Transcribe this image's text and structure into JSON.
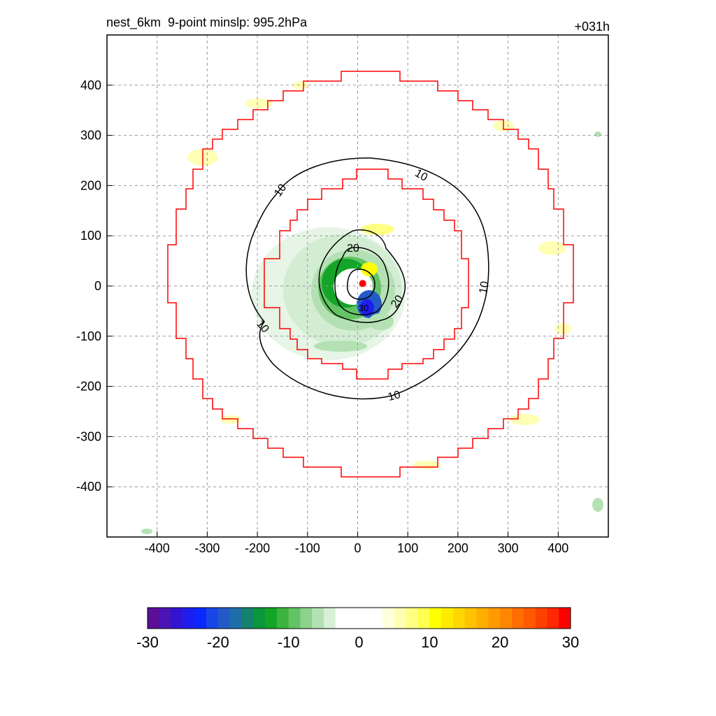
{
  "chart_data": {
    "type": "contour",
    "title_left": "nest_6km  9-point minslp: 995.2hPa",
    "title_right": "+031h",
    "xlim": [
      -500,
      500
    ],
    "ylim": [
      -500,
      500
    ],
    "x_ticks": [
      -400,
      -300,
      -200,
      -100,
      0,
      100,
      200,
      300,
      400
    ],
    "y_ticks": [
      400,
      300,
      200,
      100,
      0,
      -100,
      -200,
      -300,
      -400
    ],
    "x_tick_labels": [
      "-400",
      "-300",
      "-200",
      "-100",
      "0",
      "100",
      "200",
      "300",
      "400"
    ],
    "y_tick_labels": [
      "400",
      "300",
      "200",
      "100",
      "0",
      "-100",
      "-200",
      "-300",
      "-400"
    ],
    "grid": true,
    "contour_labels": [
      "10",
      "10",
      "10",
      "10",
      "10",
      "20",
      "20",
      "30"
    ],
    "storm_center": [
      10,
      5
    ],
    "colorbar": {
      "min": -30,
      "max": 30,
      "tick_labels": [
        "-30",
        "-20",
        "-10",
        "0",
        "10",
        "20",
        "30"
      ],
      "colors": [
        "#5a0f96",
        "#4b14b4",
        "#3214d2",
        "#1e1ef0",
        "#0a28ff",
        "#1946e6",
        "#235ac8",
        "#1e6eaa",
        "#14826e",
        "#0a963c",
        "#14a528",
        "#3cb43c",
        "#64c364",
        "#8cd28c",
        "#b4e1b4",
        "#d7f0d7",
        "#ffffff",
        "#ffffff",
        "#ffffff",
        "#ffffff",
        "#ffffdc",
        "#ffffb4",
        "#ffff82",
        "#ffff50",
        "#ffff00",
        "#ffeb00",
        "#ffd700",
        "#ffc300",
        "#ffaf00",
        "#ff9b00",
        "#ff8700",
        "#ff6e00",
        "#ff5a00",
        "#ff4100",
        "#ff2800",
        "#ff0000"
      ]
    }
  }
}
